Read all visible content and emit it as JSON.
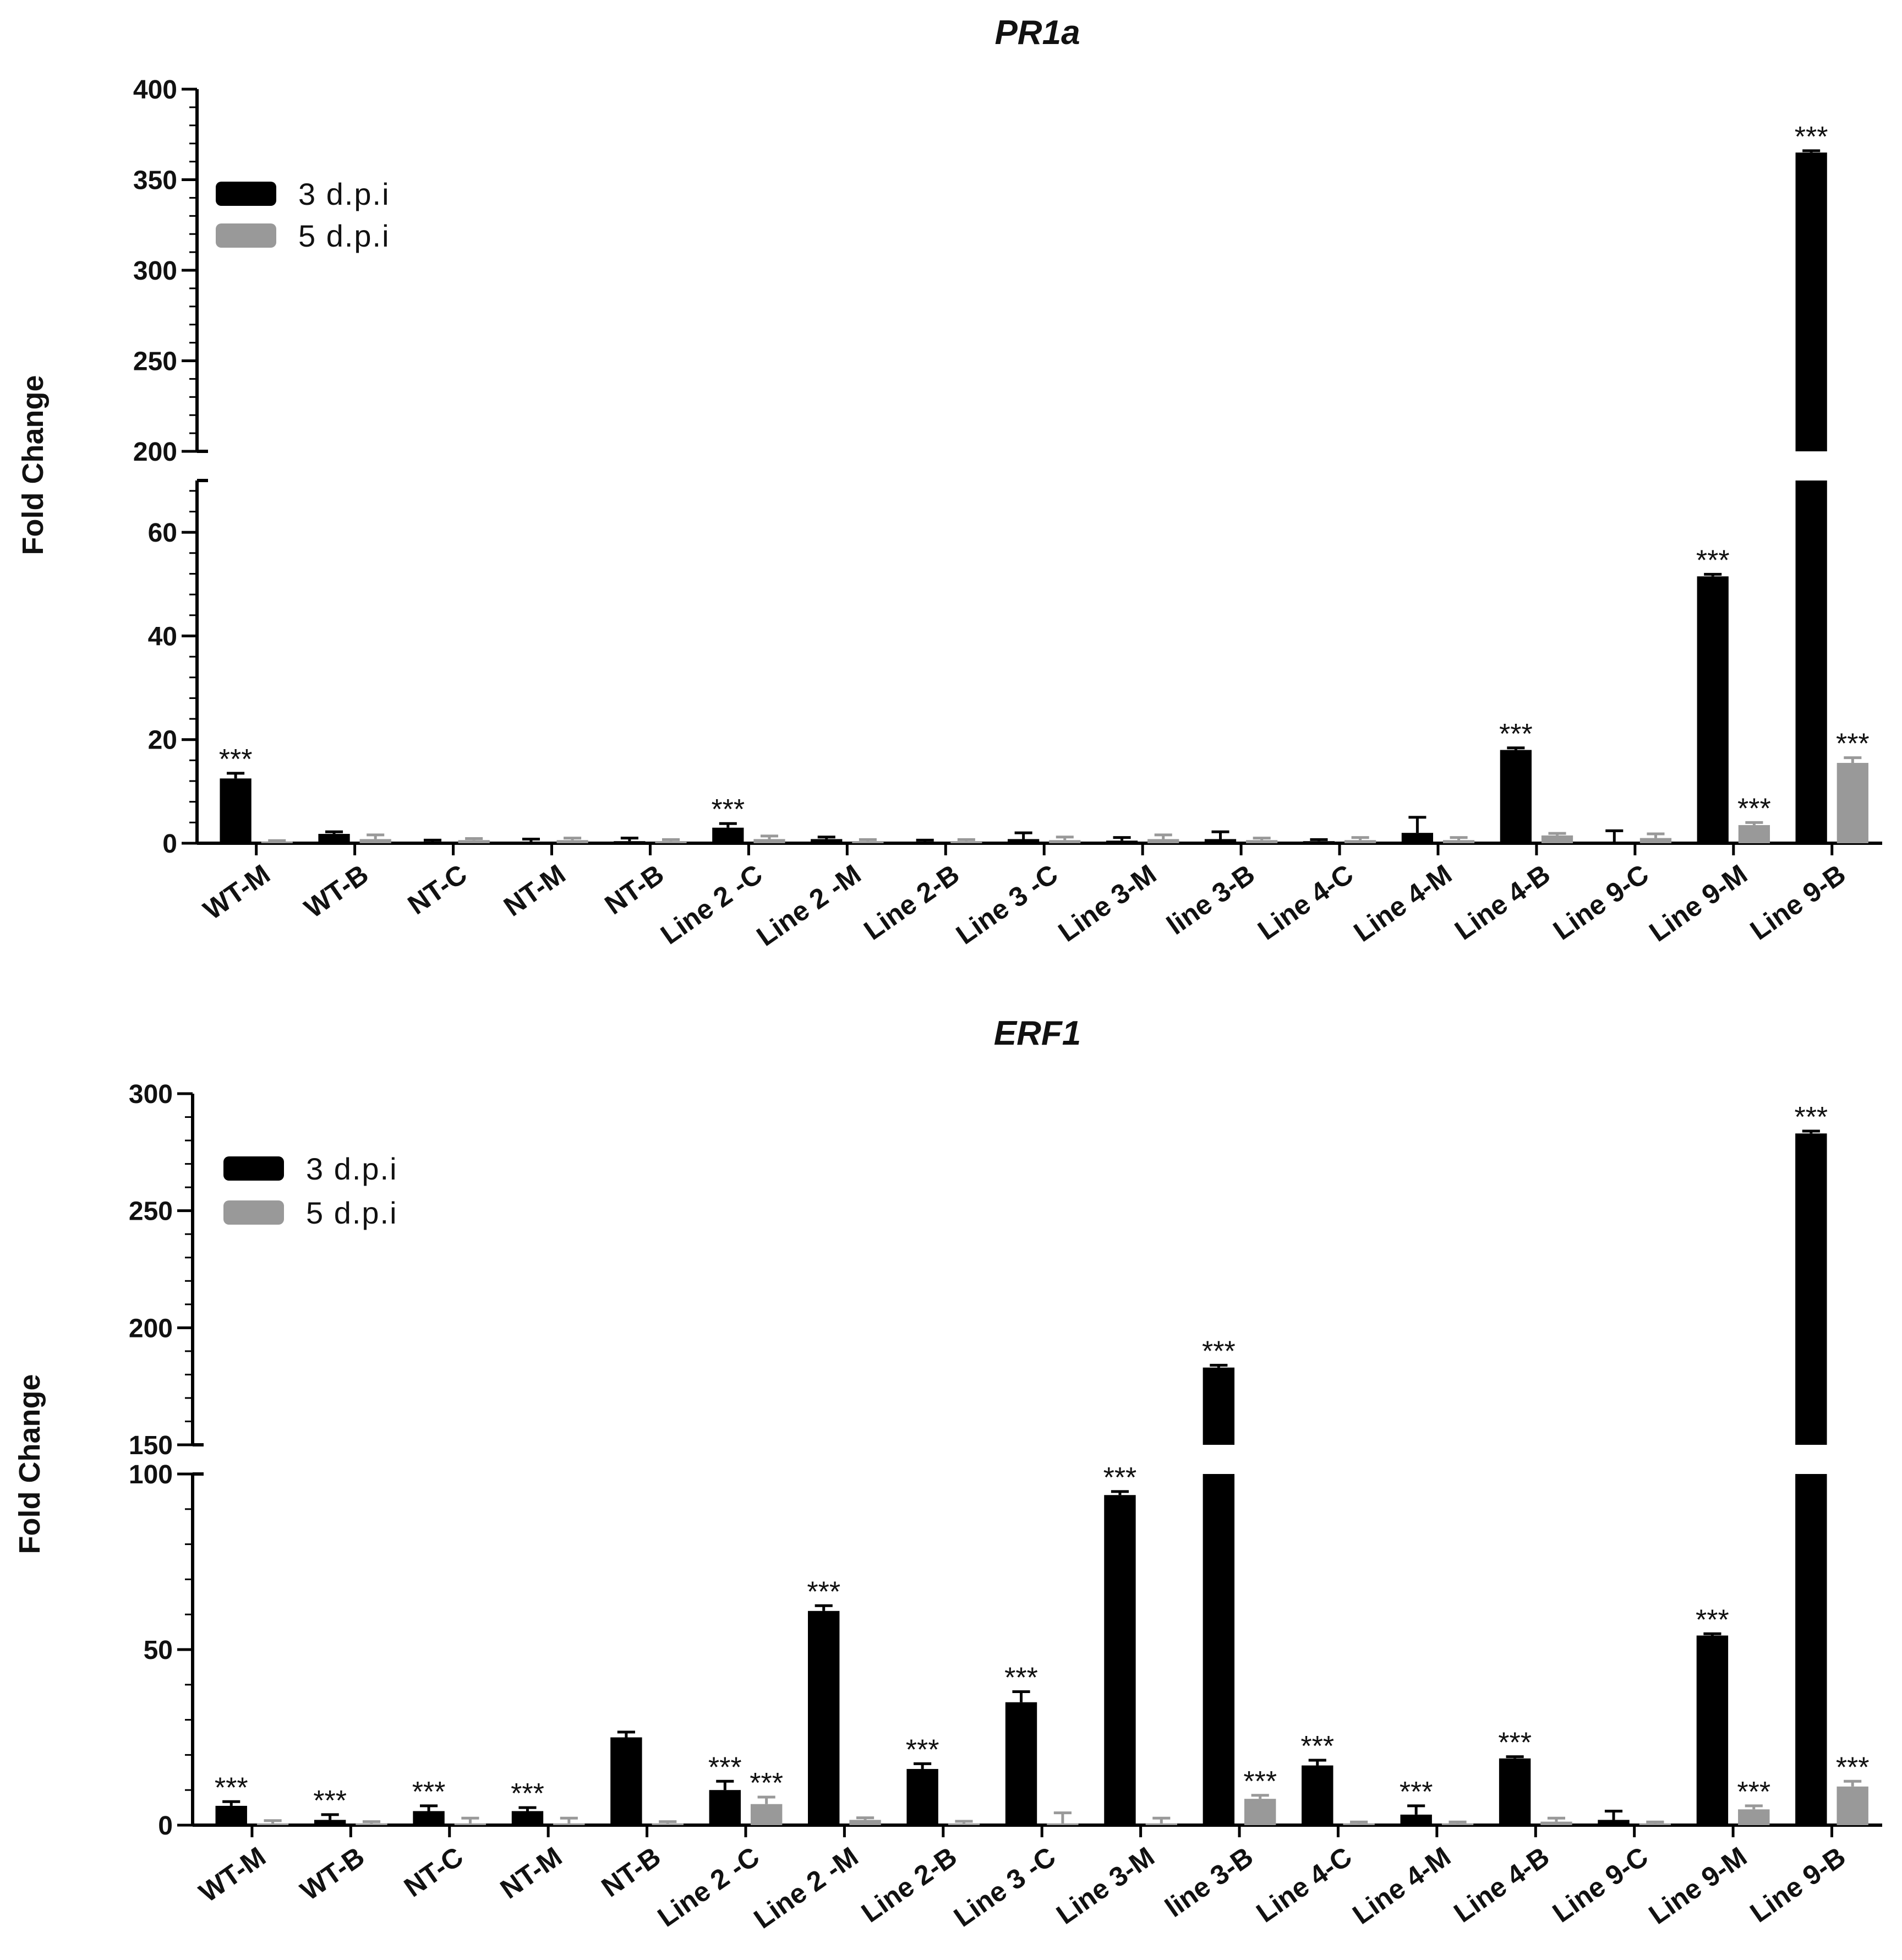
{
  "chart_data": [
    {
      "type": "bar",
      "title": "PR1a",
      "xlabel": "",
      "ylabel": "Fold Change",
      "y_axis_break": {
        "lower": [
          0,
          70
        ],
        "upper": [
          200,
          400
        ]
      },
      "lower_ticks": [
        0,
        20,
        40,
        60
      ],
      "upper_ticks": [
        200,
        250,
        300,
        350,
        400
      ],
      "legend_position": "top-left",
      "categories": [
        "WT-M",
        "WT-B",
        "NT-C",
        "NT-M",
        "NT-B",
        "Line 2 -C",
        "Line 2 -M",
        "Line 2-B",
        "Line 3 -C",
        "Line 3-M",
        "line 3-B",
        "Line 4-C",
        "Line 4-M",
        "Line 4-B",
        "Line 9-C",
        "Line 9-M",
        "Line 9-B"
      ],
      "series": [
        {
          "name": "3 d.p.i",
          "color": "#000000",
          "values": [
            12.5,
            1.8,
            0.3,
            0.3,
            0.4,
            3.0,
            0.8,
            0.3,
            0.8,
            0.5,
            0.8,
            0.4,
            2.0,
            18.0,
            0.2,
            51.5,
            365
          ],
          "errors": [
            1.0,
            0.4,
            0.3,
            0.5,
            0.6,
            0.8,
            0.4,
            0.3,
            1.2,
            0.6,
            1.4,
            0.3,
            3.0,
            0.4,
            2.2,
            0.4,
            1.0
          ],
          "significance": [
            "***",
            "",
            "",
            "",
            "",
            "***",
            "",
            "",
            "",
            "",
            "",
            "",
            "",
            "***",
            "",
            "***",
            "***"
          ]
        },
        {
          "name": "5 d.p.i",
          "color": "#999999",
          "values": [
            0.3,
            0.8,
            0.6,
            0.6,
            0.4,
            0.8,
            0.4,
            0.4,
            0.6,
            0.8,
            0.6,
            0.6,
            0.6,
            1.5,
            1.0,
            3.5,
            15.5
          ],
          "errors": [
            0.2,
            0.8,
            0.3,
            0.4,
            0.3,
            0.6,
            0.3,
            0.3,
            0.6,
            0.8,
            0.4,
            0.5,
            0.5,
            0.4,
            0.8,
            0.5,
            1.0
          ],
          "significance": [
            "",
            "",
            "",
            "",
            "",
            "",
            "",
            "",
            "",
            "",
            "",
            "",
            "",
            "",
            "",
            "***",
            "***"
          ]
        }
      ]
    },
    {
      "type": "bar",
      "title": "ERF1",
      "xlabel": "",
      "ylabel": "Fold Change",
      "y_axis_break": {
        "lower": [
          0,
          100
        ],
        "upper": [
          150,
          300
        ]
      },
      "lower_ticks": [
        0,
        50,
        100
      ],
      "upper_ticks": [
        150,
        200,
        250,
        300
      ],
      "legend_position": "top-left",
      "categories": [
        "WT-M",
        "WT-B",
        "NT-C",
        "NT-M",
        "NT-B",
        "Line 2 -C",
        "Line 2 -M",
        "Line 2-B",
        "Line 3 -C",
        "Line 3-M",
        "line 3-B",
        "Line 4-C",
        "Line 4-M",
        "Line 4-B",
        "Line 9-C",
        "Line 9-M",
        "Line 9-B"
      ],
      "series": [
        {
          "name": "3 d.p.i",
          "color": "#000000",
          "values": [
            5.5,
            1.5,
            4.0,
            4.0,
            25,
            10,
            61,
            16,
            35,
            94,
            183,
            17,
            3.0,
            19,
            1.5,
            54,
            283
          ],
          "errors": [
            1.2,
            1.5,
            1.5,
            1.0,
            1.5,
            2.5,
            1.5,
            1.5,
            3.0,
            1.0,
            1.0,
            1.5,
            2.5,
            0.5,
            2.5,
            0.5,
            1.0
          ],
          "significance": [
            "***",
            "***",
            "***",
            "***",
            "",
            "***",
            "***",
            "***",
            "***",
            "***",
            "***",
            "***",
            "***",
            "***",
            "",
            "***",
            "***"
          ]
        },
        {
          "name": "5 d.p.i",
          "color": "#999999",
          "values": [
            0.5,
            0.5,
            0.5,
            0.5,
            0.5,
            6.0,
            1.5,
            0.5,
            0.5,
            0.5,
            7.5,
            0.5,
            0.5,
            1.0,
            0.5,
            4.5,
            11
          ],
          "errors": [
            0.8,
            0.5,
            1.5,
            1.5,
            0.5,
            2.0,
            0.6,
            0.6,
            3.0,
            1.5,
            1.0,
            0.4,
            0.4,
            1.0,
            0.4,
            1.0,
            1.5
          ],
          "significance": [
            "",
            "",
            "",
            "",
            "",
            "***",
            "",
            "",
            "",
            "",
            "***",
            "",
            "",
            "",
            "",
            "***",
            "***"
          ]
        }
      ]
    }
  ]
}
